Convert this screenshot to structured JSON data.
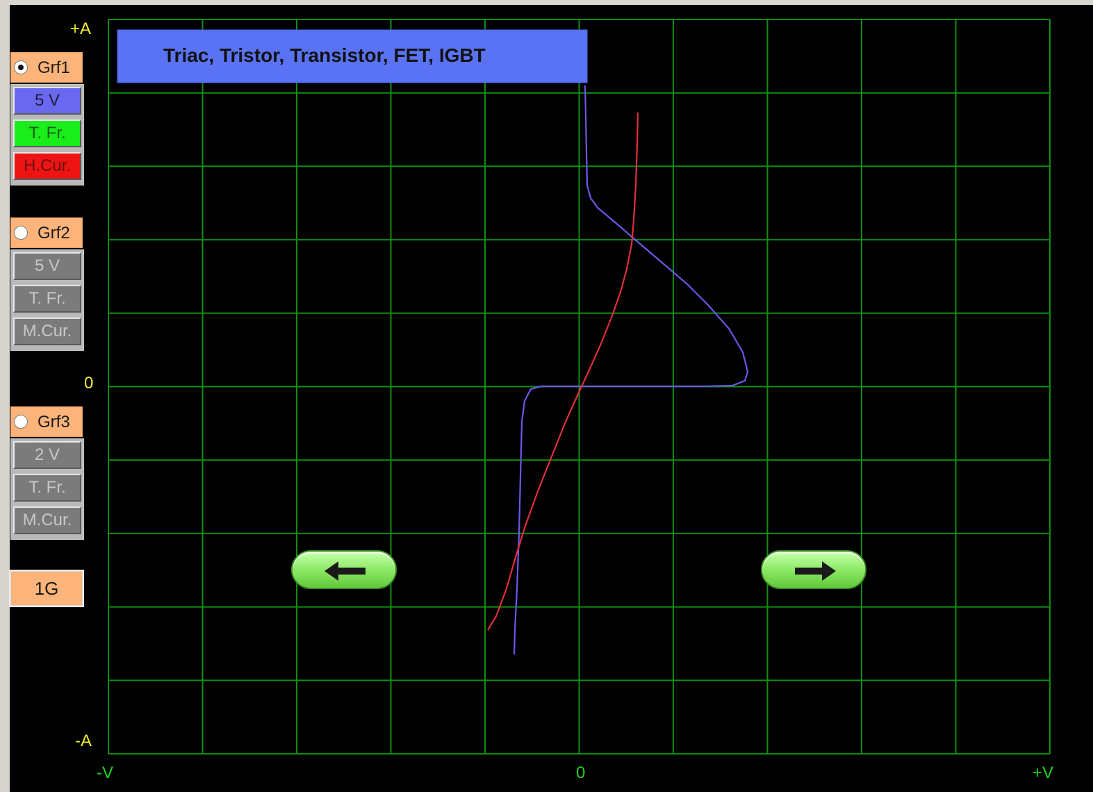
{
  "scope": {
    "title": "Triac, Tristor, Transistor, FET, IGBT",
    "y_top_label": "+A",
    "y_zero_label": "0",
    "y_bottom_label": "-A",
    "x_left_label": "-V",
    "x_zero_label": "0",
    "x_right_label": "+V"
  },
  "panel": {
    "grf1": {
      "label": "Grf1",
      "selected": true,
      "voltage": "5 V",
      "freq": "T. Fr.",
      "cur": "H.Cur."
    },
    "grf2": {
      "label": "Grf2",
      "selected": false,
      "voltage": "5 V",
      "freq": "T. Fr.",
      "cur": "M.Cur."
    },
    "grf3": {
      "label": "Grf3",
      "selected": false,
      "voltage": "2 V",
      "freq": "T. Fr.",
      "cur": "M.Cur."
    },
    "gain_button": "1G"
  },
  "navigation": {
    "left_icon": "arrow-left-icon",
    "right_icon": "arrow-right-icon"
  },
  "colors": {
    "grid": "#0f8f0f",
    "trace_grf1": "#6a58e8",
    "trace_grf2": "#e0303a",
    "title_bg": "#5a73f5",
    "label_yellow": "#f2ee2a"
  }
}
